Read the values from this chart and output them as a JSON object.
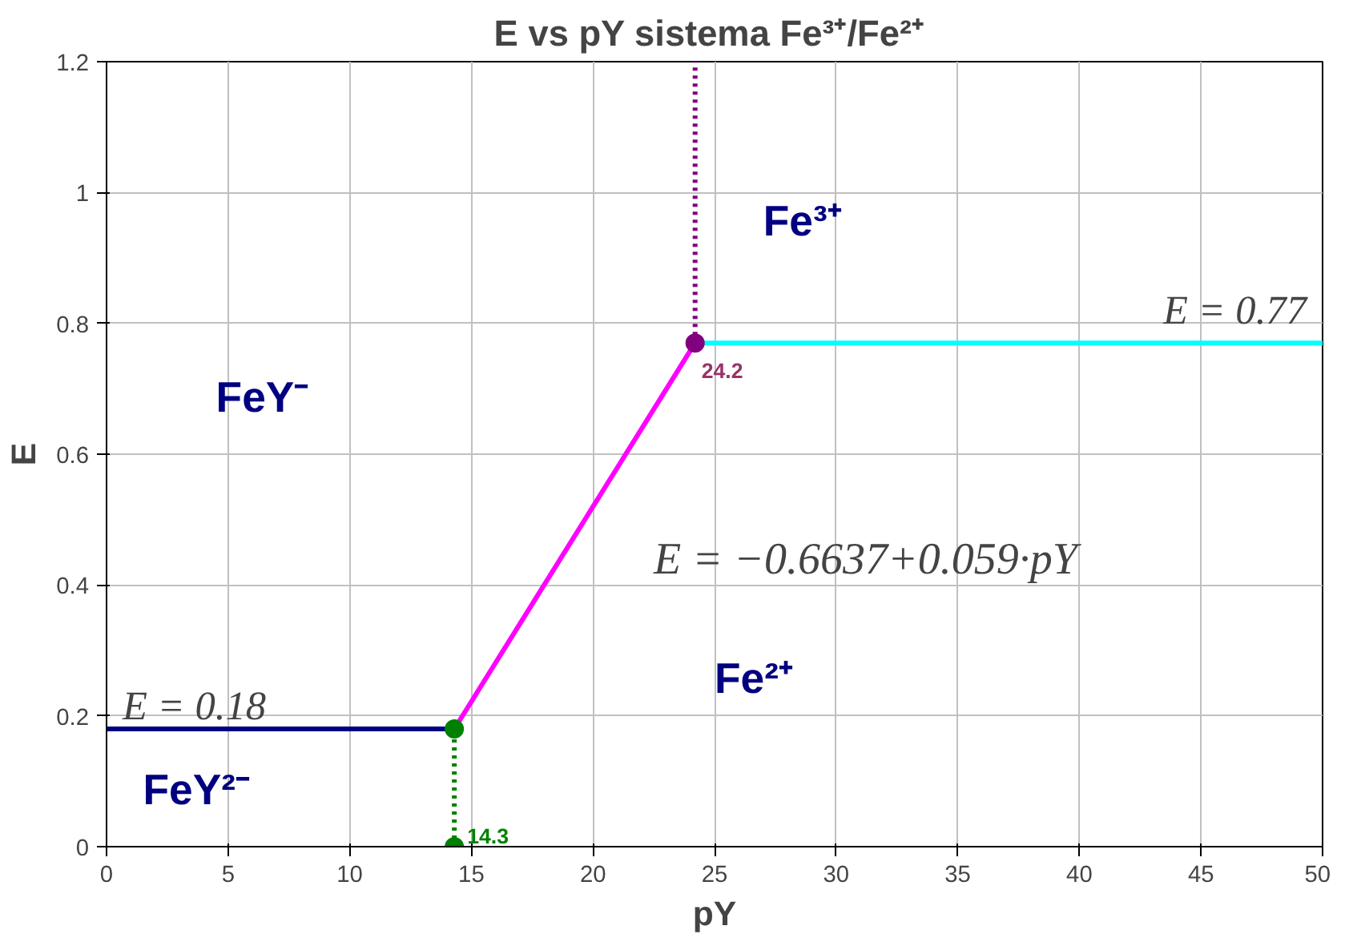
{
  "chart_data": {
    "type": "line",
    "title": "E vs pY  sistema Fe³⁺/Fe²⁺",
    "xlabel": "pY",
    "ylabel": "E",
    "xlim": [
      0,
      50
    ],
    "ylim": [
      0,
      1.2
    ],
    "xticks": [
      0,
      5,
      10,
      15,
      20,
      25,
      30,
      35,
      40,
      45,
      50
    ],
    "yticks": [
      0,
      0.2,
      0.4,
      0.6,
      0.8,
      1,
      1.2
    ],
    "grid": true,
    "series": [
      {
        "color": "#000080",
        "x": [
          0,
          14.3
        ],
        "values": [
          0.18,
          0.18
        ],
        "line_style": "solid",
        "marker": "none"
      },
      {
        "color": "#ff00ff",
        "x": [
          14.3,
          24.2
        ],
        "values": [
          0.18,
          0.77
        ],
        "line_style": "solid",
        "marker": "none"
      },
      {
        "color": "#00ffff",
        "x": [
          24.2,
          50
        ],
        "values": [
          0.77,
          0.77
        ],
        "line_style": "solid",
        "marker": "none"
      },
      {
        "type": "line",
        "color": "#008000",
        "x": [
          14.3,
          14.3
        ],
        "values": [
          0,
          0.18
        ],
        "line_style": "dotted",
        "marker": "none"
      },
      {
        "type": "line",
        "color": "#800080",
        "x": [
          24.2,
          24.2
        ],
        "values": [
          0.77,
          1.2
        ],
        "line_style": "dotted",
        "marker": "none"
      },
      {
        "type": "scatter",
        "color": "#008000",
        "x": [
          14.3,
          14.3
        ],
        "values": [
          0.18,
          0
        ],
        "marker": "circle"
      },
      {
        "type": "scatter",
        "color": "#800080",
        "x": [
          24.2
        ],
        "values": [
          0.77
        ],
        "marker": "circle"
      }
    ],
    "annotations": [
      {
        "text": "14.3",
        "x": 14.3,
        "y": 0
      },
      {
        "text": "24.2",
        "x": 24.2,
        "y": 0.77
      },
      {
        "text": "E = 0.18",
        "x": 0,
        "y": 0.18
      },
      {
        "text": "E = 0.77",
        "x": 50,
        "y": 0.77
      },
      "E = −0.6637+0.059·pY",
      "FeY⁻",
      "FeY²⁻",
      "Fe³⁺",
      "Fe²⁺"
    ]
  }
}
